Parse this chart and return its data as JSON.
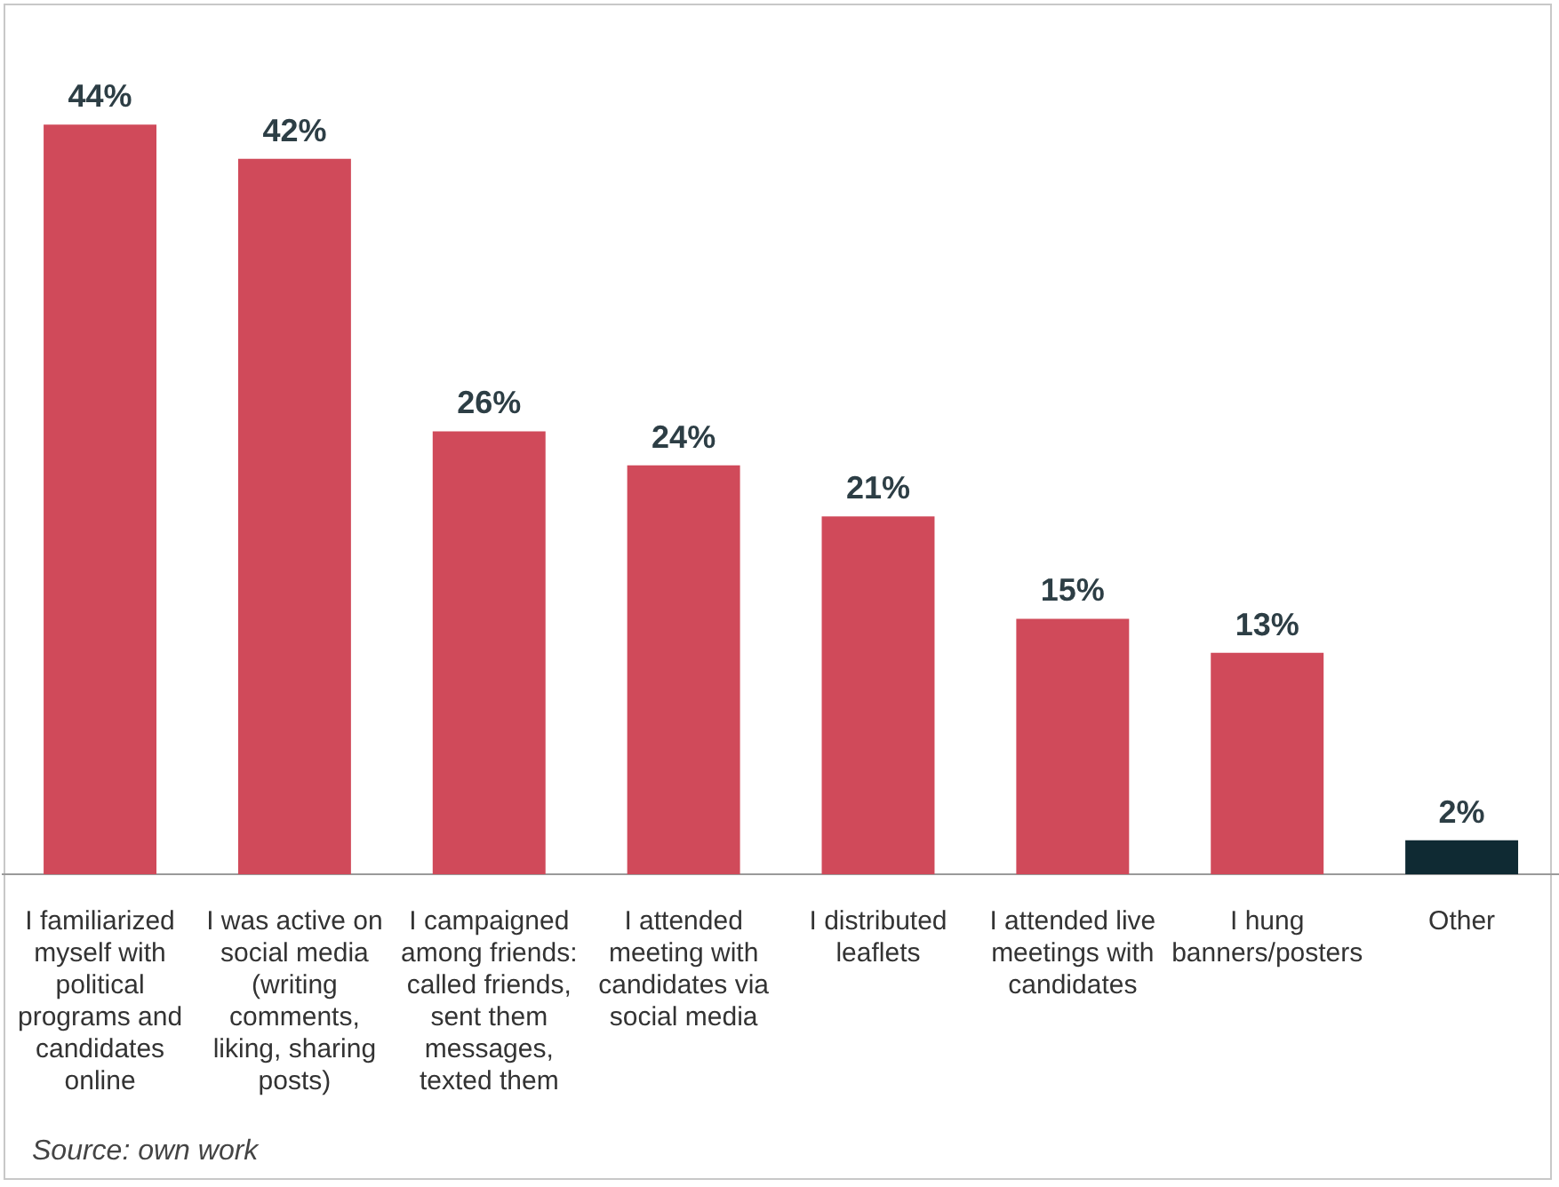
{
  "chart_data": {
    "type": "bar",
    "categories": [
      "I familiarized myself with political programs and candidates online",
      "I was active on social media (writing comments, liking, sharing posts)",
      "I campaigned among friends: called friends, sent them messages, texted them",
      "I attended meeting with candidates via social media",
      "I distributed leaflets",
      "I attended live meetings with candidates",
      "I hung banners/posters",
      "Other"
    ],
    "values": [
      44,
      42,
      26,
      24,
      21,
      15,
      13,
      2
    ],
    "colors": [
      "#d04a5a",
      "#d04a5a",
      "#d04a5a",
      "#d04a5a",
      "#d04a5a",
      "#d04a5a",
      "#d04a5a",
      "#0f2a33"
    ],
    "value_labels": [
      "44%",
      "42%",
      "26%",
      "24%",
      "21%",
      "15%",
      "13%",
      "2%"
    ],
    "annotations": [
      "Source: own work"
    ]
  }
}
